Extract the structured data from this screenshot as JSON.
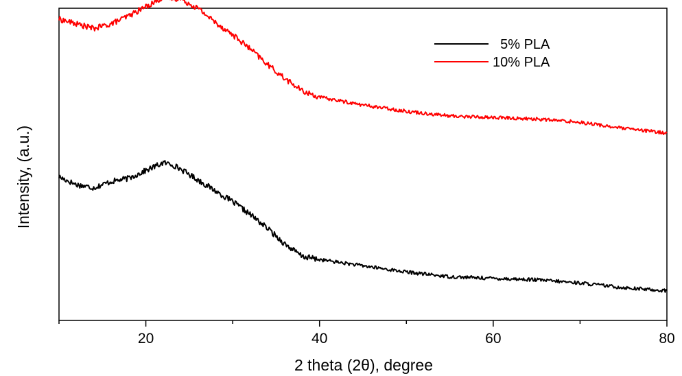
{
  "chart_data": {
    "type": "line",
    "xlabel": "2 theta (2θ), degree",
    "ylabel": "Intensity, (a.u.)",
    "xlim": [
      10,
      80
    ],
    "ylim": [
      0,
      100
    ],
    "x_ticks": [
      20,
      40,
      60,
      80
    ],
    "x_tick_labels": [
      "20",
      "40",
      "60",
      "80"
    ],
    "y_ticks_labeled": false,
    "grid": false,
    "legend_position": "top-right",
    "series": [
      {
        "name": "  5% PLA",
        "color": "#000000",
        "points": [
          [
            10,
            46
          ],
          [
            12,
            43.5
          ],
          [
            14,
            42.5
          ],
          [
            16,
            44.5
          ],
          [
            18,
            45.5
          ],
          [
            20,
            48
          ],
          [
            22,
            50.5
          ],
          [
            23,
            50
          ],
          [
            24,
            48.5
          ],
          [
            26,
            45
          ],
          [
            28,
            41.5
          ],
          [
            30,
            38
          ],
          [
            32,
            34
          ],
          [
            34,
            29.5
          ],
          [
            36,
            24.5
          ],
          [
            38,
            20.5
          ],
          [
            40,
            19.5
          ],
          [
            45,
            17.5
          ],
          [
            50,
            15.5
          ],
          [
            55,
            14
          ],
          [
            60,
            13.5
          ],
          [
            65,
            13
          ],
          [
            70,
            12
          ],
          [
            75,
            10.5
          ],
          [
            80,
            9.5
          ]
        ]
      },
      {
        "name": "10% PLA",
        "color": "#ff0000",
        "points": [
          [
            10,
            96.5
          ],
          [
            12,
            95
          ],
          [
            14,
            93.5
          ],
          [
            16,
            95
          ],
          [
            18,
            97.5
          ],
          [
            20,
            100.5
          ],
          [
            22,
            103.5
          ],
          [
            24,
            103
          ],
          [
            26,
            100
          ],
          [
            28,
            95.5
          ],
          [
            30,
            91.5
          ],
          [
            32,
            87
          ],
          [
            34,
            82
          ],
          [
            36,
            77.5
          ],
          [
            38,
            73.5
          ],
          [
            40,
            71.5
          ],
          [
            45,
            69
          ],
          [
            50,
            67
          ],
          [
            55,
            65.5
          ],
          [
            60,
            65
          ],
          [
            65,
            64.5
          ],
          [
            70,
            63.5
          ],
          [
            75,
            61.5
          ],
          [
            80,
            60
          ]
        ]
      }
    ]
  }
}
